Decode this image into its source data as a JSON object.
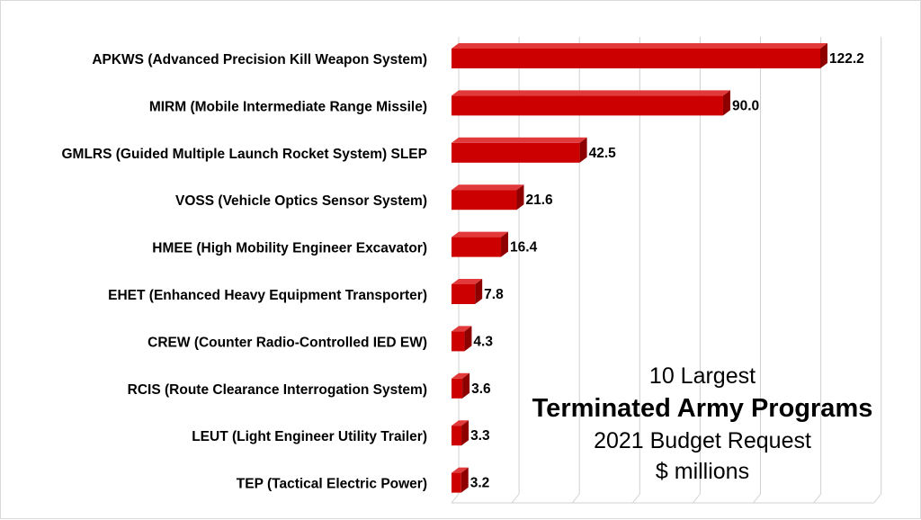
{
  "chart_data": {
    "type": "bar",
    "orientation": "horizontal",
    "style": "3d",
    "bar_color": "#cc0000",
    "title_lines": [
      "10 Largest",
      "Terminated Army Programs",
      "2021 Budget Request",
      "$ millions"
    ],
    "categories": [
      "APKWS (Advanced Precision Kill Weapon System)",
      "MIRM (Mobile Intermediate Range Missile)",
      "GMLRS (Guided Multiple Launch Rocket System) SLEP",
      "VOSS (Vehicle Optics Sensor System)",
      "HMEE (High Mobility Engineer Excavator)",
      "EHET (Enhanced Heavy Equipment Transporter)",
      "CREW (Counter Radio-Controlled IED EW)",
      "RCIS (Route Clearance Interrogation System)",
      "LEUT (Light Engineer Utility Trailer)",
      "TEP (Tactical Electric Power)"
    ],
    "values": [
      122.2,
      90.0,
      42.5,
      21.6,
      16.4,
      7.8,
      4.3,
      3.6,
      3.3,
      3.2
    ],
    "data_labels": [
      "122.2",
      "90.0",
      "42.5",
      "21.6",
      "16.4",
      "7.8",
      "4.3",
      "3.6",
      "3.3",
      "3.2"
    ],
    "xlim": [
      0,
      140
    ],
    "x_gridline_step": 20,
    "xlabel": "",
    "ylabel": "",
    "grid": true
  }
}
